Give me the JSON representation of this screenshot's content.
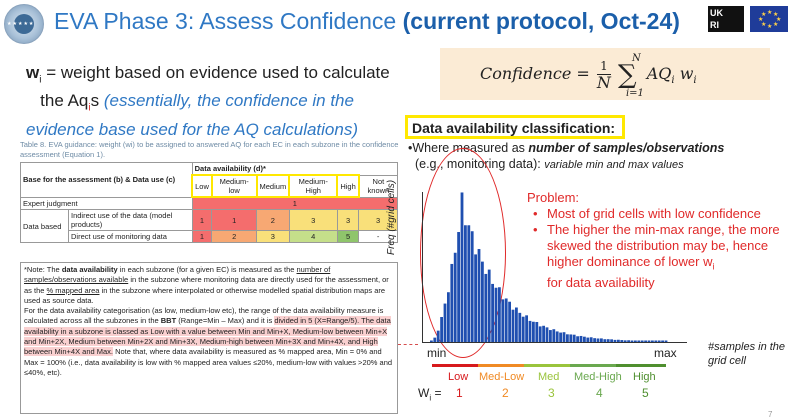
{
  "title": {
    "main": "EVA Phase 3: Assess Confidence ",
    "bold": "(current protocol, Oct-24)"
  },
  "logos": {
    "right_logo_text": "UK\nRI"
  },
  "weight_def": {
    "symbol": "w",
    "sub": "i",
    "line1": " = weight based on evidence used to calculate",
    "line2_a": "the Aq",
    "line2_sub": "i",
    "line2_b": "s ",
    "italic": "(essentially, the confidence in the evidence base used for the AQ calculations)"
  },
  "formula": {
    "lhs": "Confidence",
    "eq": "=",
    "num": "1",
    "den": "N",
    "sum_top": "N",
    "sum_bot": "i=1",
    "term": "AQ",
    "term_sub": "i",
    "w": "w",
    "w_sub": "i"
  },
  "table": {
    "caption": "Table 8. EVA guidance: weight (wi) to be assigned to answered AQ for each EC in each subzone in the confidence assessment (Equation 1).",
    "header_top": "Data availability (d)*",
    "header_left": "Base for the assessment (b) & Data use (c)",
    "cols": [
      "Low",
      "Medium-low",
      "Medium",
      "Medium-High",
      "High",
      "Not known"
    ],
    "rows": [
      {
        "label": "Expert judgment",
        "value": "1"
      },
      {
        "group": "Data based",
        "label": "Indirect use of the data (model products)",
        "values": [
          "1",
          "1",
          "2",
          "3",
          "3",
          "3"
        ]
      },
      {
        "label": "Direct use of monitoring data",
        "values": [
          "1",
          "2",
          "3",
          "4",
          "5",
          "-"
        ]
      }
    ]
  },
  "note": {
    "p1_a": "*Note: The ",
    "p1_b": "data availability",
    "p1_c": " in each subzone (for a given EC) is measured as the ",
    "p1_d": "number of samples/observations available",
    "p1_e": " in the subzone where monitoring data are directly used for the assessment, or as the ",
    "p1_f": "% mapped area",
    "p1_g": " in the subzone where interpolated or otherwise modelled spatial distribution maps are used as source data.",
    "p2_a": "For the data availability categorisation (as low, medium-low etc), the range of the data availability measure is calculated across all the subzones in the ",
    "p2_b": "BBT",
    "p2_c": " (Range=Min – Max) and it is ",
    "p2_d": "divided in 5 (X=Range/5). The data availability in a subzone is classed as Low with a value between Min and Min+X, Medium-low between Min+X and Min+2X, Medium between Min+2X and Min+3X, Medium-high between Min+3X and Min+4X, and High between Min+4X and Max.",
    "p2_e": " Note that, where data availability is measured as % mapped area, Min = 0% and Max = 100% (i.e., data availability is low with % mapped area values ≤20%, medium-low with values >20% and ≤40%, etc)."
  },
  "right": {
    "dac_title": "Data availability classification:",
    "where_a": "•Where measured as ",
    "where_b": "number of samples/observations",
    "where_c": "(e.g., monitoring data): ",
    "where_d": "variable min and max values",
    "problem_title": "Problem:",
    "bullets": [
      "Most of grid cells with low confidence",
      "The higher the min-max range, the more skewed the distribution may be, hence higher dominance of lower w",
      "for data availability"
    ],
    "bullet_sub": "i",
    "ylabel": "Freq (#grid cells)",
    "min": "min",
    "max": "max",
    "xlabel": "#samples in the grid cell",
    "categories": [
      "Low",
      "Med-Low",
      "Med",
      "Med-High",
      "High"
    ],
    "weights_label": "W",
    "weights_sub": "i",
    "weights_eq": " =",
    "weights": [
      "1",
      "2",
      "3",
      "4",
      "5"
    ],
    "cat_colors": [
      "#d7191c",
      "#f08a24",
      "#9ac43c",
      "#6aa84f",
      "#4f8f2f"
    ],
    "hist_color": "#1f4fb0"
  },
  "page_number": "7"
}
